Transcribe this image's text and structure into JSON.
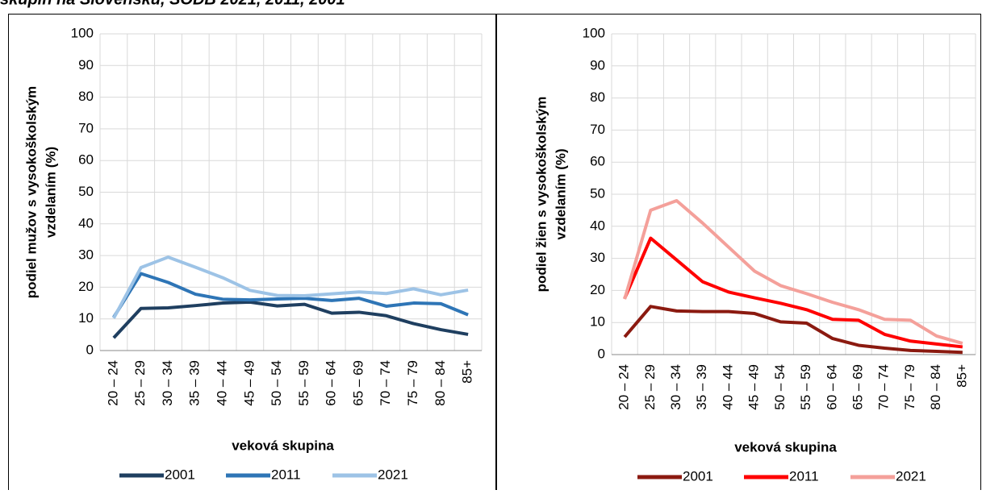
{
  "page_title": "skupín na Slovensku, SODB 2021, 2011, 2001",
  "chart_data": [
    {
      "type": "line",
      "xlabel": "veková skupina",
      "ylabel": [
        "podiel mužov s vysokoškolským",
        "vzdelaním (%)"
      ],
      "categories": [
        "20 – 24",
        "25 – 29",
        "30 – 34",
        "35 – 39",
        "40 – 44",
        "45 – 49",
        "50 – 54",
        "55 – 59",
        "60 – 64",
        "65 – 69",
        "70 – 74",
        "75 – 79",
        "80 – 84",
        "85+"
      ],
      "series": [
        {
          "name": "2001",
          "color": "#1f3f60",
          "values": [
            4,
            13.3,
            13.5,
            14.2,
            15,
            15.3,
            14.1,
            14.6,
            11.8,
            12.1,
            11,
            8.5,
            6.6,
            5.1
          ]
        },
        {
          "name": "2011",
          "color": "#2e75b6",
          "values": [
            10.5,
            24.3,
            21.5,
            17.8,
            16.2,
            16,
            16.3,
            16.5,
            15.8,
            16.5,
            14,
            15,
            14.8,
            11.3
          ]
        },
        {
          "name": "2021",
          "color": "#9dc3e6",
          "values": [
            10.2,
            26.2,
            29.5,
            26.3,
            23,
            19,
            17.4,
            17.3,
            17.9,
            18.5,
            18,
            19.5,
            17.6,
            19.1
          ]
        }
      ],
      "ylim": [
        0,
        100
      ],
      "yticks": [
        0,
        10,
        20,
        30,
        40,
        50,
        60,
        70,
        80,
        90,
        100
      ],
      "grid": true,
      "legend": "bottom"
    },
    {
      "type": "line",
      "xlabel": "veková skupina",
      "ylabel": [
        "podiel žien s vysokoškolským",
        "vzdelaním (%)"
      ],
      "categories": [
        "20 – 24",
        "25 – 29",
        "30 – 34",
        "35 – 39",
        "40 – 44",
        "45 – 49",
        "50 – 54",
        "55 – 59",
        "60 – 64",
        "65 – 69",
        "70 – 74",
        "75 – 79",
        "80 – 84",
        "85+"
      ],
      "series": [
        {
          "name": "2001",
          "color": "#8b1a10",
          "values": [
            5.5,
            15,
            13.6,
            13.4,
            13.4,
            12.8,
            10.2,
            9.8,
            5,
            2.9,
            2,
            1.3,
            1,
            0.7
          ]
        },
        {
          "name": "2011",
          "color": "#ff0000",
          "values": [
            17.5,
            36.3,
            29.5,
            22.7,
            19.5,
            17.7,
            16,
            14,
            11,
            10.7,
            6.3,
            4.2,
            3.3,
            2.4
          ]
        },
        {
          "name": "2021",
          "color": "#f4a09a",
          "values": [
            17.3,
            45,
            48,
            41,
            33.5,
            26,
            21.5,
            19,
            16.3,
            14,
            11,
            10.7,
            5.8,
            3.5
          ]
        }
      ],
      "ylim": [
        0,
        100
      ],
      "yticks": [
        0,
        10,
        20,
        30,
        40,
        50,
        60,
        70,
        80,
        90,
        100
      ],
      "grid": true,
      "legend": "bottom"
    }
  ]
}
